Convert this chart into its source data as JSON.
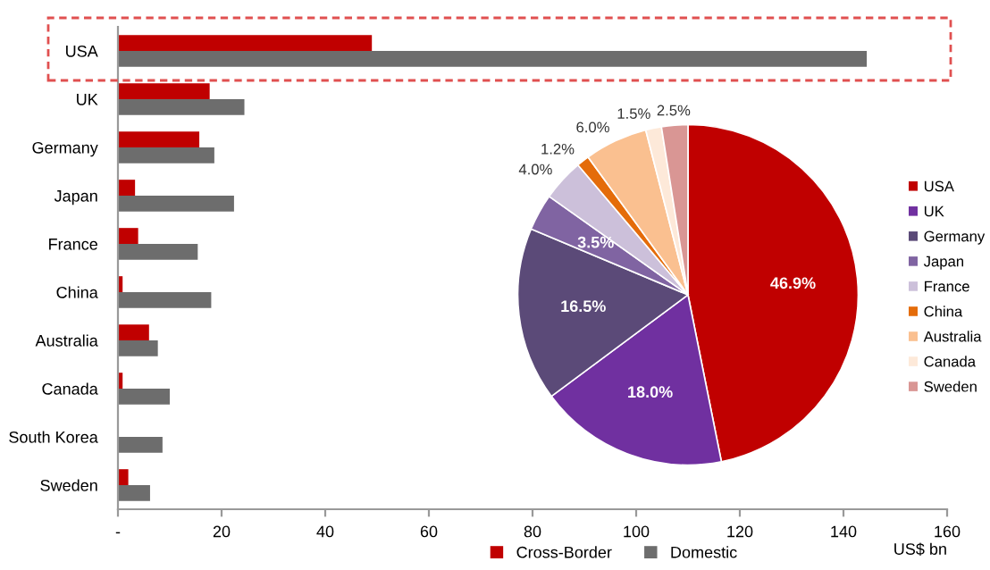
{
  "chart_data": [
    {
      "type": "bar",
      "orientation": "horizontal",
      "xlabel": "US$ bn",
      "categories": [
        "USA",
        "UK",
        "Germany",
        "Japan",
        "France",
        "China",
        "Australia",
        "Canada",
        "South Korea",
        "Sweden"
      ],
      "series": [
        {
          "name": "Cross-Border",
          "color": "#c00000",
          "values": [
            49,
            17.7,
            15.7,
            3.3,
            3.9,
            0.9,
            6.0,
            0.9,
            0,
            2.0
          ]
        },
        {
          "name": "Domestic",
          "color": "#6d6d6d",
          "values": [
            144.5,
            24.4,
            18.6,
            22.4,
            15.4,
            18.0,
            7.7,
            10.0,
            8.6,
            6.2
          ]
        }
      ],
      "xlim": [
        0,
        160
      ],
      "xticks": [
        {
          "value": 0,
          "label": "-"
        },
        20,
        40,
        60,
        80,
        100,
        120,
        140,
        160
      ],
      "grid": false,
      "legend": "bottom"
    },
    {
      "type": "pie",
      "categories": [
        "USA",
        "UK",
        "Germany",
        "Japan",
        "France",
        "China",
        "Australia",
        "Canada",
        "Sweden"
      ],
      "values": [
        46.9,
        18.0,
        16.5,
        3.5,
        4.0,
        1.2,
        6.0,
        1.5,
        2.5
      ],
      "colors": [
        "#c00000",
        "#7030a0",
        "#5b4a78",
        "#8064a2",
        "#ccc0da",
        "#e46c0a",
        "#fac090",
        "#fde9d9",
        "#d99694"
      ],
      "value_labels": [
        "46.9%",
        "18.0%",
        "16.5%",
        "3.5%",
        "4.0%",
        "1.2%",
        "6.0%",
        "1.5%",
        "2.5%"
      ],
      "legend": "right"
    }
  ]
}
